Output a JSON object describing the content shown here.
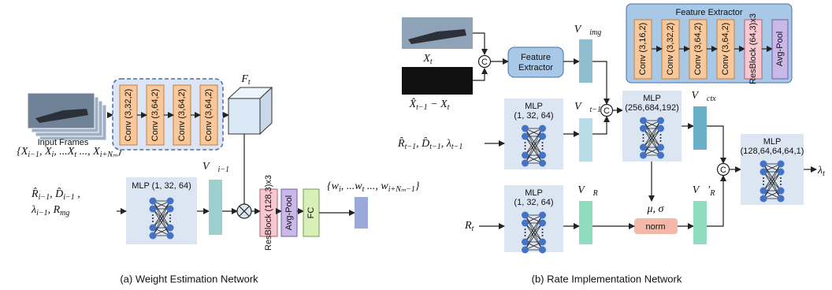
{
  "panel_a": {
    "caption": "(a) Weight Estimation Network",
    "input_label": "Input Frames",
    "input_set": [
      "{X",
      {
        "sub": "i−1"
      },
      ", X",
      {
        "sub": "i"
      },
      ", ...X",
      {
        "sub": "t"
      },
      " ..., X",
      {
        "sub": "i+Nₘ"
      },
      "}"
    ],
    "convs": [
      "Conv (3,32,2)",
      "Conv (3,64,2)",
      "Conv (3,64,2)",
      "Conv (3,64,2)"
    ],
    "feature": [
      "F",
      {
        "sub": "t"
      }
    ],
    "mlp": "MLP (1, 32, 64)",
    "mlp_inputs_line1": [
      "R̂",
      {
        "sub": "i−1"
      },
      ", D̂",
      {
        "sub": "i−1"
      },
      " ,"
    ],
    "mlp_inputs_line2": [
      "λ",
      {
        "sub": "i−1"
      },
      ", R",
      {
        "sub": "mg"
      }
    ],
    "vector": [
      "V⃗",
      {
        "sub": "i−1"
      }
    ],
    "resblock": "ResBlock (128,3)x3",
    "avgpool": "Avg-Pool",
    "fc": "FC",
    "output": [
      "{w",
      {
        "sub": "i"
      },
      ", ...w",
      {
        "sub": "t"
      },
      " ..., w",
      {
        "sub": "i+Nₘ−1"
      },
      "}"
    ]
  },
  "panel_b": {
    "caption": "(b) Rate Implementation Network",
    "concat": "C",
    "x_t": [
      "X",
      {
        "sub": "t"
      }
    ],
    "residual": [
      "X̂",
      {
        "sub": "t−1"
      },
      " − X",
      {
        "sub": "t"
      }
    ],
    "feature_extractor": [
      "Feature",
      "Extractor"
    ],
    "fe_panel_title": "Feature Extractor",
    "fe_convs": [
      "Conv (3,16,2)",
      "Conv (3,32,2)",
      "Conv (3,64,2)",
      "Conv (3,64,2)"
    ],
    "fe_resblock": "ResBlock (64,3)x3",
    "fe_avgpool": "Avg-Pool",
    "v_img": [
      "V⃗",
      {
        "sub": "img"
      }
    ],
    "prev_inputs": [
      "R̂",
      {
        "sub": "t−1"
      },
      ", D̂",
      {
        "sub": "t−1"
      },
      ", λ",
      {
        "sub": "t−1"
      }
    ],
    "mlp_prev": [
      "MLP",
      "(1, 32, 64)"
    ],
    "v_prev": [
      "V⃗",
      {
        "sub": "t−1"
      }
    ],
    "mlp_ctx": [
      "MLP",
      "(256,684,192)"
    ],
    "v_ctx": [
      "V⃗",
      {
        "sub": "ctx"
      }
    ],
    "mu_sigma": "μ, σ",
    "norm": "norm",
    "r_t": [
      "R",
      {
        "sub": "t"
      }
    ],
    "mlp_r": [
      "MLP",
      "(1, 32, 64)"
    ],
    "v_r": [
      "V⃗",
      {
        "sub": "R"
      }
    ],
    "v_r_prime": [
      "V⃗′",
      {
        "sub": "R"
      }
    ],
    "mlp_out": [
      "MLP",
      "(128,64,64,64,1)"
    ],
    "output": [
      "λ",
      {
        "sub": "t"
      }
    ]
  }
}
